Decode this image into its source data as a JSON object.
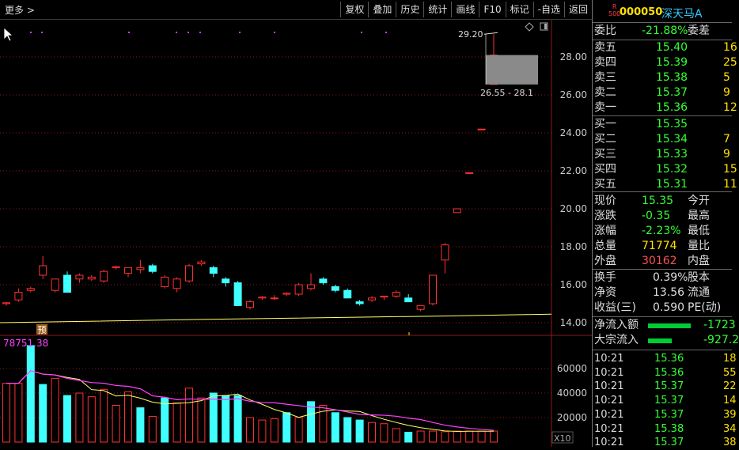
{
  "topbar": {
    "more_label": "更多 >",
    "toolbar": [
      "复权",
      "叠加",
      "历史",
      "统计",
      "画线",
      "F10",
      "标记",
      "-自选",
      "返回"
    ]
  },
  "price_chart": {
    "y_ticks": [
      "28.00",
      "26.00",
      "24.00",
      "22.00",
      "20.00",
      "18.00",
      "16.00",
      "14.00"
    ],
    "max_label": "29.20",
    "range_label": "26.55 - 28.1",
    "marker_label": "预",
    "candles": [
      [
        15.0,
        15.1,
        14.9,
        15.05
      ],
      [
        15.2,
        15.8,
        15.1,
        15.6
      ],
      [
        15.7,
        15.9,
        15.6,
        15.8
      ],
      [
        16.5,
        17.5,
        16.3,
        17.0
      ],
      [
        15.7,
        16.2,
        15.6,
        16.3
      ],
      [
        16.5,
        16.7,
        15.6,
        15.6
      ],
      [
        16.3,
        16.6,
        16.1,
        16.5
      ],
      [
        16.3,
        16.5,
        16.2,
        16.4
      ],
      [
        16.2,
        16.8,
        16.1,
        16.7
      ],
      [
        16.9,
        17.0,
        16.8,
        16.95
      ],
      [
        16.6,
        16.9,
        16.4,
        16.9
      ],
      [
        16.8,
        17.3,
        16.6,
        16.9
      ],
      [
        17.0,
        17.1,
        16.6,
        16.7
      ],
      [
        15.9,
        16.5,
        15.8,
        16.4
      ],
      [
        15.8,
        16.4,
        15.6,
        16.3
      ],
      [
        16.2,
        17.1,
        16.1,
        17.0
      ],
      [
        17.1,
        17.3,
        17.0,
        17.2
      ],
      [
        16.9,
        17.0,
        16.4,
        16.6
      ],
      [
        16.3,
        16.4,
        15.9,
        16.1
      ],
      [
        16.1,
        16.2,
        14.9,
        14.9
      ],
      [
        14.8,
        15.2,
        14.7,
        15.1
      ],
      [
        15.3,
        15.4,
        15.2,
        15.35
      ],
      [
        15.3,
        15.45,
        15.2,
        15.3
      ],
      [
        15.5,
        15.6,
        15.4,
        15.55
      ],
      [
        15.5,
        16.1,
        15.4,
        16.0
      ],
      [
        15.8,
        16.6,
        15.7,
        16.0
      ],
      [
        16.3,
        16.4,
        16.0,
        16.1
      ],
      [
        15.9,
        16.0,
        15.6,
        15.7
      ],
      [
        15.7,
        15.8,
        15.3,
        15.3
      ],
      [
        15.1,
        15.2,
        14.9,
        15.0
      ],
      [
        15.2,
        15.4,
        15.1,
        15.3
      ],
      [
        15.35,
        15.4,
        15.2,
        15.4
      ],
      [
        15.4,
        15.7,
        15.3,
        15.6
      ],
      [
        15.3,
        15.5,
        15.2,
        15.1
      ],
      [
        14.7,
        14.9,
        14.6,
        14.9
      ],
      [
        15.0,
        16.5,
        14.9,
        16.5
      ],
      [
        17.3,
        18.2,
        16.6,
        18.1
      ],
      [
        19.8,
        20.0,
        19.8,
        20.0
      ],
      [
        21.9,
        21.9,
        21.9,
        21.9
      ],
      [
        24.2,
        24.2,
        24.2,
        24.2
      ],
      [
        26.55,
        29.2,
        26.55,
        28.1
      ]
    ]
  },
  "volume_chart": {
    "top_label": "78751.38",
    "y_ticks": [
      "60000",
      "40000",
      "20000"
    ],
    "x10_label": "X10",
    "bars": [
      [
        48000,
        "u"
      ],
      [
        48000,
        "u"
      ],
      [
        78751,
        "d"
      ],
      [
        47000,
        "d"
      ],
      [
        52000,
        "u"
      ],
      [
        38000,
        "d"
      ],
      [
        40000,
        "u"
      ],
      [
        37000,
        "u"
      ],
      [
        43000,
        "u"
      ],
      [
        30000,
        "u"
      ],
      [
        41000,
        "u"
      ],
      [
        28000,
        "d"
      ],
      [
        21000,
        "u"
      ],
      [
        36000,
        "d"
      ],
      [
        32000,
        "u"
      ],
      [
        44000,
        "u"
      ],
      [
        36000,
        "u"
      ],
      [
        40000,
        "d"
      ],
      [
        38000,
        "d"
      ],
      [
        38000,
        "d"
      ],
      [
        20000,
        "u"
      ],
      [
        18000,
        "u"
      ],
      [
        19000,
        "u"
      ],
      [
        24000,
        "d"
      ],
      [
        20000,
        "u"
      ],
      [
        33000,
        "d"
      ],
      [
        30000,
        "u"
      ],
      [
        24000,
        "d"
      ],
      [
        20000,
        "d"
      ],
      [
        18000,
        "d"
      ],
      [
        16000,
        "u"
      ],
      [
        15000,
        "u"
      ],
      [
        11000,
        "u"
      ],
      [
        8000,
        "d"
      ],
      [
        9000,
        "u"
      ],
      [
        9000,
        "u"
      ],
      [
        8500,
        "u"
      ],
      [
        9000,
        "u"
      ],
      [
        9000,
        "u"
      ],
      [
        9000,
        "u"
      ],
      [
        9000,
        "u"
      ]
    ]
  },
  "stock": {
    "r500": [
      "R",
      "500"
    ],
    "code": "000050",
    "name": "深天马A"
  },
  "quote": {
    "ratio_label": "委比",
    "ratio_value": "-21.88%",
    "diff_label": "委差",
    "asks": [
      {
        "label": "卖五",
        "price": "15.40",
        "qty": "16"
      },
      {
        "label": "卖四",
        "price": "15.39",
        "qty": "25"
      },
      {
        "label": "卖三",
        "price": "15.38",
        "qty": "5"
      },
      {
        "label": "卖二",
        "price": "15.37",
        "qty": "9"
      },
      {
        "label": "卖一",
        "price": "15.36",
        "qty": "12"
      }
    ],
    "bids": [
      {
        "label": "买一",
        "price": "15.35",
        "qty": ""
      },
      {
        "label": "买二",
        "price": "15.34",
        "qty": "7"
      },
      {
        "label": "买三",
        "price": "15.33",
        "qty": "9"
      },
      {
        "label": "买四",
        "price": "15.32",
        "qty": "15"
      },
      {
        "label": "买五",
        "price": "15.31",
        "qty": "11"
      }
    ],
    "stats": [
      {
        "l": "现价",
        "v": "15.35",
        "r": "今开",
        "c": "#3f3"
      },
      {
        "l": "涨跌",
        "v": "-0.35",
        "r": "最高",
        "c": "#3f3"
      },
      {
        "l": "涨幅",
        "v": "-2.23%",
        "r": "最低",
        "c": "#3f3"
      },
      {
        "l": "总量",
        "v": "71774",
        "r": "量比",
        "c": "#ffe100"
      },
      {
        "l": "外盘",
        "v": "30162",
        "r": "内盘",
        "c": "#ff5050"
      }
    ],
    "stats2": [
      {
        "l": "换手",
        "v": "0.39%",
        "r": "股本"
      },
      {
        "l": "净资",
        "v": "13.56",
        "r": "流通"
      },
      {
        "l": "收益(三)",
        "v": "0.590",
        "r": "PE(动)"
      }
    ],
    "flows": [
      {
        "l": "净流入额",
        "v": "-1723"
      },
      {
        "l": "大宗流入",
        "v": "-927.2"
      }
    ],
    "ticks": [
      {
        "t": "10:21",
        "p": "15.36",
        "v": "18"
      },
      {
        "t": "10:21",
        "p": "15.36",
        "v": "55"
      },
      {
        "t": "10:21",
        "p": "15.37",
        "v": "22"
      },
      {
        "t": "10:21",
        "p": "15.37",
        "v": "14"
      },
      {
        "t": "10:21",
        "p": "15.37",
        "v": "39"
      },
      {
        "t": "10:21",
        "p": "15.38",
        "v": "34"
      },
      {
        "t": "10:21",
        "p": "15.37",
        "v": "38"
      }
    ]
  },
  "colors": {
    "up": "#ff3030",
    "down": "#40ffff",
    "ma1": "#ffff66",
    "ma2": "#ff40ff",
    "grid": "#8b1a1a"
  }
}
